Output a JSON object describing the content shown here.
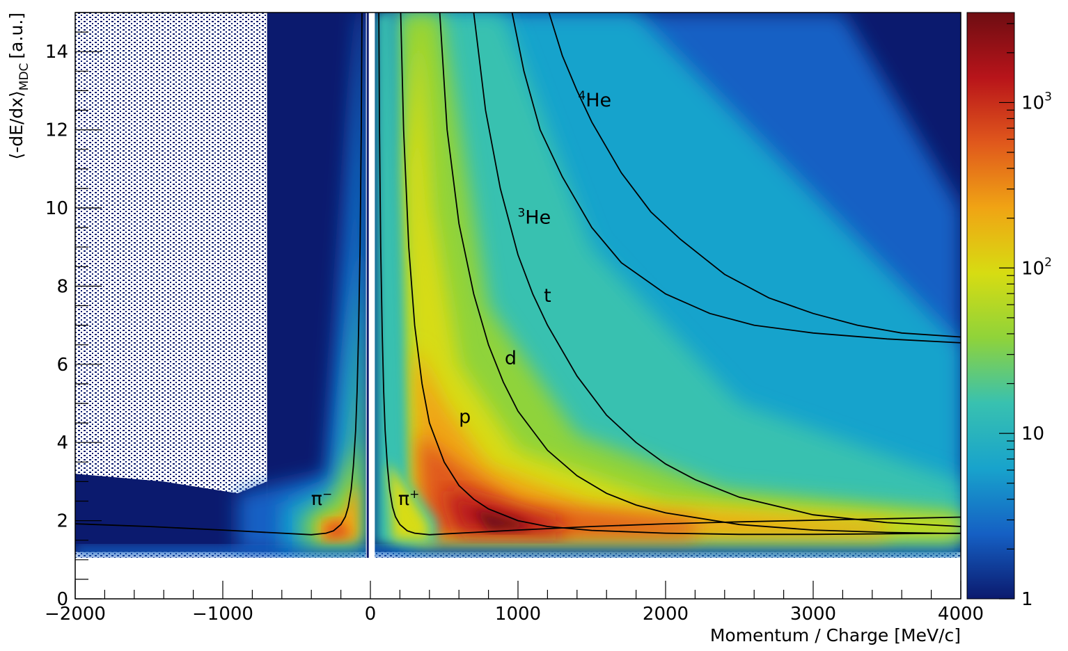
{
  "chart_data": {
    "type": "heatmap",
    "xlabel": "Momentum / Charge [MeV/c]",
    "ylabel_main": "⟨-dE/dx⟩",
    "ylabel_sub": "MDC",
    "ylabel_unit": "[a.u.]",
    "xlim": [
      -2000,
      4000
    ],
    "ylim": [
      0,
      15
    ],
    "x_ticks": [
      -2000,
      -1000,
      0,
      1000,
      2000,
      3000,
      4000
    ],
    "x_tick_labels": [
      "−2000",
      "−1000",
      "0",
      "1000",
      "2000",
      "3000",
      "4000"
    ],
    "y_ticks": [
      0,
      2,
      4,
      6,
      8,
      10,
      12,
      14
    ],
    "y_tick_labels": [
      "0",
      "2",
      "4",
      "6",
      "8",
      "10",
      "12",
      "14"
    ],
    "colorbar": {
      "scale": "log",
      "range": [
        1,
        3500
      ],
      "tick_values": [
        1,
        10,
        100,
        1000
      ],
      "tick_labels": [
        {
          "base": "1",
          "exp": ""
        },
        {
          "base": "10",
          "exp": ""
        },
        {
          "base": "10",
          "exp": "2"
        },
        {
          "base": "10",
          "exp": "3"
        }
      ],
      "palette": [
        "#0b1a6e",
        "#1560c4",
        "#18a3cc",
        "#38c1b0",
        "#8fd33a",
        "#d7dc12",
        "#f0a414",
        "#e0581c",
        "#b8141a",
        "#6e0d12"
      ]
    },
    "particle_labels": [
      {
        "text": "π",
        "sup": "−",
        "x": -330,
        "y": 2.4
      },
      {
        "text": "π",
        "sup": "+",
        "x": 260,
        "y": 2.4
      },
      {
        "text": "p",
        "sup": "",
        "x": 640,
        "y": 4.5
      },
      {
        "text": "d",
        "sup": "",
        "x": 950,
        "y": 6.0
      },
      {
        "text": "t",
        "sup": "",
        "x": 1200,
        "y": 7.6
      },
      {
        "text": "He",
        "sup": "3",
        "x": 1110,
        "y": 9.6
      },
      {
        "text": "He",
        "sup": "4",
        "x": 1520,
        "y": 12.6
      }
    ],
    "series": [
      {
        "particle": "π−",
        "points": [
          [
            -2000,
            1.92
          ],
          [
            -1500,
            1.85
          ],
          [
            -1000,
            1.76
          ],
          [
            -700,
            1.7
          ],
          [
            -500,
            1.66
          ],
          [
            -400,
            1.64
          ],
          [
            -300,
            1.68
          ],
          [
            -250,
            1.74
          ],
          [
            -200,
            1.9
          ],
          [
            -170,
            2.1
          ],
          [
            -150,
            2.35
          ],
          [
            -130,
            2.8
          ],
          [
            -115,
            3.4
          ],
          [
            -100,
            4.3
          ],
          [
            -90,
            5.3
          ],
          [
            -80,
            6.8
          ],
          [
            -70,
            9.0
          ],
          [
            -62,
            12.0
          ],
          [
            -57,
            15.0
          ]
        ]
      },
      {
        "particle": "π+",
        "points": [
          [
            57,
            15.0
          ],
          [
            62,
            12.0
          ],
          [
            70,
            9.0
          ],
          [
            80,
            6.8
          ],
          [
            90,
            5.3
          ],
          [
            100,
            4.3
          ],
          [
            115,
            3.4
          ],
          [
            130,
            2.8
          ],
          [
            150,
            2.35
          ],
          [
            170,
            2.1
          ],
          [
            200,
            1.9
          ],
          [
            250,
            1.74
          ],
          [
            300,
            1.68
          ],
          [
            400,
            1.64
          ],
          [
            500,
            1.66
          ],
          [
            700,
            1.7
          ],
          [
            1000,
            1.76
          ],
          [
            1500,
            1.85
          ],
          [
            2000,
            1.92
          ],
          [
            2500,
            1.97
          ],
          [
            3000,
            2.01
          ],
          [
            3500,
            2.05
          ],
          [
            4000,
            2.09
          ]
        ]
      },
      {
        "particle": "p",
        "points": [
          [
            205,
            15.0
          ],
          [
            225,
            12.0
          ],
          [
            260,
            9.0
          ],
          [
            300,
            7.0
          ],
          [
            350,
            5.5
          ],
          [
            400,
            4.5
          ],
          [
            500,
            3.5
          ],
          [
            600,
            2.9
          ],
          [
            700,
            2.55
          ],
          [
            800,
            2.3
          ],
          [
            1000,
            2.0
          ],
          [
            1200,
            1.85
          ],
          [
            1500,
            1.75
          ],
          [
            2000,
            1.68
          ],
          [
            2500,
            1.65
          ],
          [
            3000,
            1.65
          ],
          [
            4000,
            1.68
          ]
        ]
      },
      {
        "particle": "d",
        "points": [
          [
            470,
            15.0
          ],
          [
            520,
            12.0
          ],
          [
            600,
            9.6
          ],
          [
            700,
            7.8
          ],
          [
            800,
            6.5
          ],
          [
            900,
            5.55
          ],
          [
            1000,
            4.8
          ],
          [
            1200,
            3.8
          ],
          [
            1400,
            3.15
          ],
          [
            1600,
            2.7
          ],
          [
            1800,
            2.4
          ],
          [
            2000,
            2.2
          ],
          [
            2500,
            1.9
          ],
          [
            3000,
            1.76
          ],
          [
            3500,
            1.7
          ],
          [
            4000,
            1.67
          ]
        ]
      },
      {
        "particle": "t",
        "points": [
          [
            700,
            15.0
          ],
          [
            780,
            12.5
          ],
          [
            880,
            10.5
          ],
          [
            1000,
            8.8
          ],
          [
            1100,
            7.8
          ],
          [
            1200,
            7.0
          ],
          [
            1400,
            5.7
          ],
          [
            1600,
            4.7
          ],
          [
            1800,
            4.0
          ],
          [
            2000,
            3.45
          ],
          [
            2200,
            3.05
          ],
          [
            2500,
            2.6
          ],
          [
            3000,
            2.15
          ],
          [
            3500,
            1.95
          ],
          [
            4000,
            1.85
          ]
        ]
      },
      {
        "particle": "3He",
        "points": [
          [
            960,
            15.0
          ],
          [
            1040,
            13.5
          ],
          [
            1150,
            12.0
          ],
          [
            1300,
            10.8
          ],
          [
            1500,
            9.5
          ],
          [
            1700,
            8.6
          ],
          [
            2000,
            7.8
          ],
          [
            2300,
            7.3
          ],
          [
            2600,
            7.0
          ],
          [
            3000,
            6.8
          ],
          [
            3500,
            6.65
          ],
          [
            4000,
            6.55
          ]
        ]
      },
      {
        "particle": "4He",
        "points": [
          [
            1210,
            15.0
          ],
          [
            1300,
            13.9
          ],
          [
            1400,
            13.0
          ],
          [
            1500,
            12.2
          ],
          [
            1700,
            10.9
          ],
          [
            1900,
            9.9
          ],
          [
            2100,
            9.2
          ],
          [
            2400,
            8.3
          ],
          [
            2700,
            7.7
          ],
          [
            3000,
            7.3
          ],
          [
            3300,
            7.0
          ],
          [
            3600,
            6.8
          ],
          [
            4000,
            6.7
          ]
        ]
      }
    ]
  }
}
